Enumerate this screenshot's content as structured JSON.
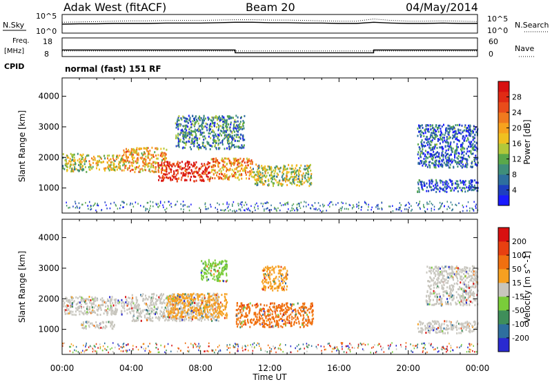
{
  "header": {
    "station": "Adak West (fitACF)",
    "beam": "Beam 20",
    "date": "04/May/2014"
  },
  "chart_data": [
    {
      "type": "line",
      "panel": "noise",
      "series": [
        {
          "name": "N.Sky",
          "style": "solid",
          "x": [
            "00:00",
            "01:00",
            "02:00",
            "03:00",
            "04:00",
            "05:00",
            "06:00",
            "07:00",
            "08:00",
            "09:00",
            "10:00",
            "11:00",
            "12:00",
            "13:00",
            "14:00",
            "15:00",
            "16:00",
            "17:00",
            "18:00",
            "19:00",
            "20:00",
            "21:00",
            "22:00",
            "23:00",
            "24:00"
          ],
          "values": [
            2.4,
            2.5,
            2.5,
            2.6,
            2.6,
            2.6,
            2.7,
            2.7,
            2.7,
            2.8,
            2.9,
            2.9,
            2.8,
            2.8,
            2.7,
            2.7,
            2.6,
            2.6,
            2.9,
            2.7,
            2.6,
            2.6,
            2.7,
            2.6,
            2.6
          ]
        },
        {
          "name": "N.Search",
          "style": "dotted",
          "x": [
            "00:00",
            "01:00",
            "02:00",
            "03:00",
            "04:00",
            "05:00",
            "06:00",
            "07:00",
            "08:00",
            "09:00",
            "10:00",
            "11:00",
            "12:00",
            "13:00",
            "14:00",
            "15:00",
            "16:00",
            "17:00",
            "18:00",
            "19:00",
            "20:00",
            "21:00",
            "22:00",
            "23:00",
            "24:00"
          ],
          "values": [
            2.9,
            3.0,
            3.1,
            3.2,
            3.3,
            3.3,
            3.4,
            3.4,
            3.4,
            3.5,
            3.6,
            3.6,
            3.5,
            3.5,
            3.4,
            3.3,
            3.2,
            3.2,
            3.8,
            3.4,
            3.2,
            3.2,
            3.3,
            3.2,
            3.1
          ]
        }
      ],
      "left_label": "N.Sky",
      "right_label": "N.Search",
      "left_ticks": [
        "10^5",
        "10^0"
      ],
      "right_ticks": [
        "10^5",
        "10^0"
      ]
    },
    {
      "type": "line",
      "panel": "frequency",
      "series": [
        {
          "name": "Freq.",
          "style": "solid",
          "x": [
            "00:00",
            "10:00",
            "10:00",
            "18:00",
            "18:00",
            "24:00"
          ],
          "values": [
            11.5,
            11.5,
            10.0,
            10.0,
            11.5,
            11.5
          ]
        },
        {
          "name": "Nave",
          "style": "dotted",
          "x": [
            "00:00",
            "24:00"
          ],
          "values": [
            18,
            18
          ]
        }
      ],
      "left_label": "Freq.",
      "left_unit": "[MHz]",
      "right_label": "Nave",
      "left_ticks": [
        "18",
        "8"
      ],
      "right_ticks": [
        "60",
        "0"
      ],
      "cpid_label": "CPID",
      "cpid_text": "normal (fast) 151 RF"
    },
    {
      "type": "heatmap",
      "panel": "power",
      "ylabel": "Slant Range [km]",
      "xlabel": "Time UT",
      "xlim": [
        0,
        24
      ],
      "ylim": [
        180,
        4600
      ],
      "yticks": [
        "1000",
        "2000",
        "3000",
        "4000"
      ],
      "xticks": [
        "00:00",
        "04:00",
        "08:00",
        "12:00",
        "16:00",
        "20:00",
        "00:00"
      ],
      "colorbar": {
        "label": "Power [dB]",
        "ticks": [
          "4",
          "8",
          "12",
          "16",
          "20",
          "24",
          "28"
        ],
        "colors": [
          "#1a1aff",
          "#1e3fbf",
          "#2e6f9e",
          "#3f8e7a",
          "#5aa84a",
          "#b2c83a",
          "#f0c020",
          "#f7a21e",
          "#f07a1e",
          "#e94c1a",
          "#e02a14",
          "#d81010"
        ]
      },
      "regions": [
        {
          "t0": 0.0,
          "t1": 1.5,
          "r0": 1550,
          "r1": 2150,
          "level": 0.45
        },
        {
          "t0": 1.5,
          "t1": 3.5,
          "r0": 1600,
          "r1": 2100,
          "level": 0.55
        },
        {
          "t0": 3.5,
          "t1": 6.0,
          "r0": 1550,
          "r1": 2350,
          "level": 0.62
        },
        {
          "t0": 5.5,
          "t1": 8.5,
          "r0": 1250,
          "r1": 1900,
          "level": 0.9
        },
        {
          "t0": 8.5,
          "t1": 11.0,
          "r0": 1300,
          "r1": 2000,
          "level": 0.65
        },
        {
          "t0": 11.0,
          "t1": 14.5,
          "r0": 1100,
          "r1": 1800,
          "level": 0.45
        },
        {
          "t0": 6.5,
          "t1": 10.5,
          "r0": 2300,
          "r1": 3400,
          "level": 0.25
        },
        {
          "t0": 20.5,
          "t1": 24.0,
          "r0": 900,
          "r1": 1300,
          "level": 0.15
        },
        {
          "t0": 20.5,
          "t1": 24.0,
          "r0": 1700,
          "r1": 3100,
          "level": 0.2
        }
      ]
    },
    {
      "type": "heatmap",
      "panel": "velocity",
      "ylabel": "Slant Range [km]",
      "xlabel": "Time UT",
      "xlim": [
        0,
        24
      ],
      "ylim": [
        180,
        4600
      ],
      "yticks": [
        "1000",
        "2000",
        "3000",
        "4000"
      ],
      "xticks": [
        "00:00",
        "04:00",
        "08:00",
        "12:00",
        "16:00",
        "20:00",
        "00:00"
      ],
      "colorbar": {
        "label": "Velocity [m s^-1]",
        "ticks": [
          "200",
          "100",
          "50",
          "15",
          "-15",
          "-50",
          "-100",
          "-200"
        ],
        "colors": [
          "#2a2ad0",
          "#2e6f9e",
          "#3f8e5a",
          "#7acc3a",
          "#c8c6be",
          "#f6a020",
          "#f07010",
          "#e84010",
          "#d81010"
        ]
      },
      "regions": [
        {
          "t0": 0.0,
          "t1": 4.0,
          "r0": 1500,
          "r1": 2100,
          "color": "#c8c6be"
        },
        {
          "t0": 1.0,
          "t1": 3.0,
          "r0": 1050,
          "r1": 1300,
          "color": "#c8c6be"
        },
        {
          "t0": 4.0,
          "t1": 9.0,
          "r0": 1300,
          "r1": 2200,
          "color": "#c8c6be"
        },
        {
          "t0": 6.0,
          "t1": 9.5,
          "r0": 1400,
          "r1": 2200,
          "color": "#f6a020"
        },
        {
          "t0": 10.0,
          "t1": 14.5,
          "r0": 1100,
          "r1": 1900,
          "color": "#f07010"
        },
        {
          "t0": 11.5,
          "t1": 13.0,
          "r0": 2300,
          "r1": 3100,
          "color": "#f6a020"
        },
        {
          "t0": 8.0,
          "t1": 9.5,
          "r0": 2600,
          "r1": 3300,
          "color": "#7acc3a"
        },
        {
          "t0": 20.5,
          "t1": 24.0,
          "r0": 900,
          "r1": 1300,
          "color": "#c8c6be"
        },
        {
          "t0": 21.0,
          "t1": 24.0,
          "r0": 1800,
          "r1": 3100,
          "color": "#c8c6be"
        }
      ]
    }
  ]
}
